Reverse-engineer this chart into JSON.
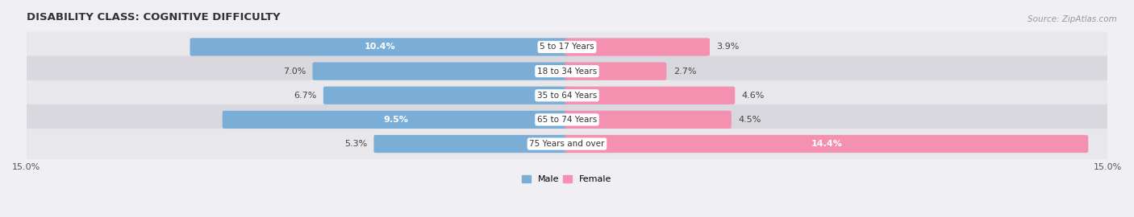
{
  "title": "DISABILITY CLASS: COGNITIVE DIFFICULTY",
  "source": "Source: ZipAtlas.com",
  "categories": [
    "5 to 17 Years",
    "18 to 34 Years",
    "35 to 64 Years",
    "65 to 74 Years",
    "75 Years and over"
  ],
  "male_values": [
    10.4,
    7.0,
    6.7,
    9.5,
    5.3
  ],
  "female_values": [
    3.9,
    2.7,
    4.6,
    4.5,
    14.4
  ],
  "male_label_inside": [
    true,
    false,
    false,
    true,
    false
  ],
  "female_label_inside": [
    false,
    false,
    false,
    false,
    true
  ],
  "xlim": 15.0,
  "male_color": "#7aaed6",
  "female_color": "#f490b0",
  "row_bg_colors": [
    "#e8e8ec",
    "#d8d8de",
    "#e8e8ec",
    "#d8d8de",
    "#e8e8ec"
  ],
  "title_fontsize": 9.5,
  "source_fontsize": 7.5,
  "bar_label_fontsize": 8,
  "axis_label_fontsize": 8,
  "legend_fontsize": 8,
  "category_fontsize": 7.5
}
